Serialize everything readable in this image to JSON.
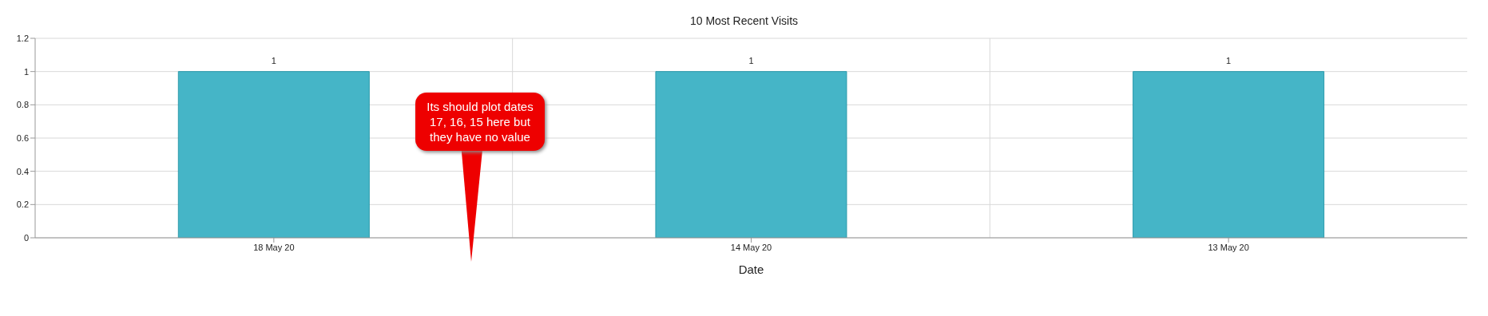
{
  "chart_data": {
    "type": "bar",
    "title": "10 Most Recent Visits",
    "xlabel": "Date",
    "categories": [
      "18 May 20",
      "14 May 20",
      "13 May 20"
    ],
    "values": [
      1,
      1,
      1
    ],
    "color": "#45b5c7",
    "ylim": [
      0,
      1.2
    ],
    "yticks": [
      0,
      0.2,
      0.4,
      0.6,
      0.8,
      1,
      1.2
    ],
    "grid": true,
    "data_labels": true,
    "annotations": [
      "Its should plot dates 17, 16, 15 here but they have no value"
    ]
  }
}
